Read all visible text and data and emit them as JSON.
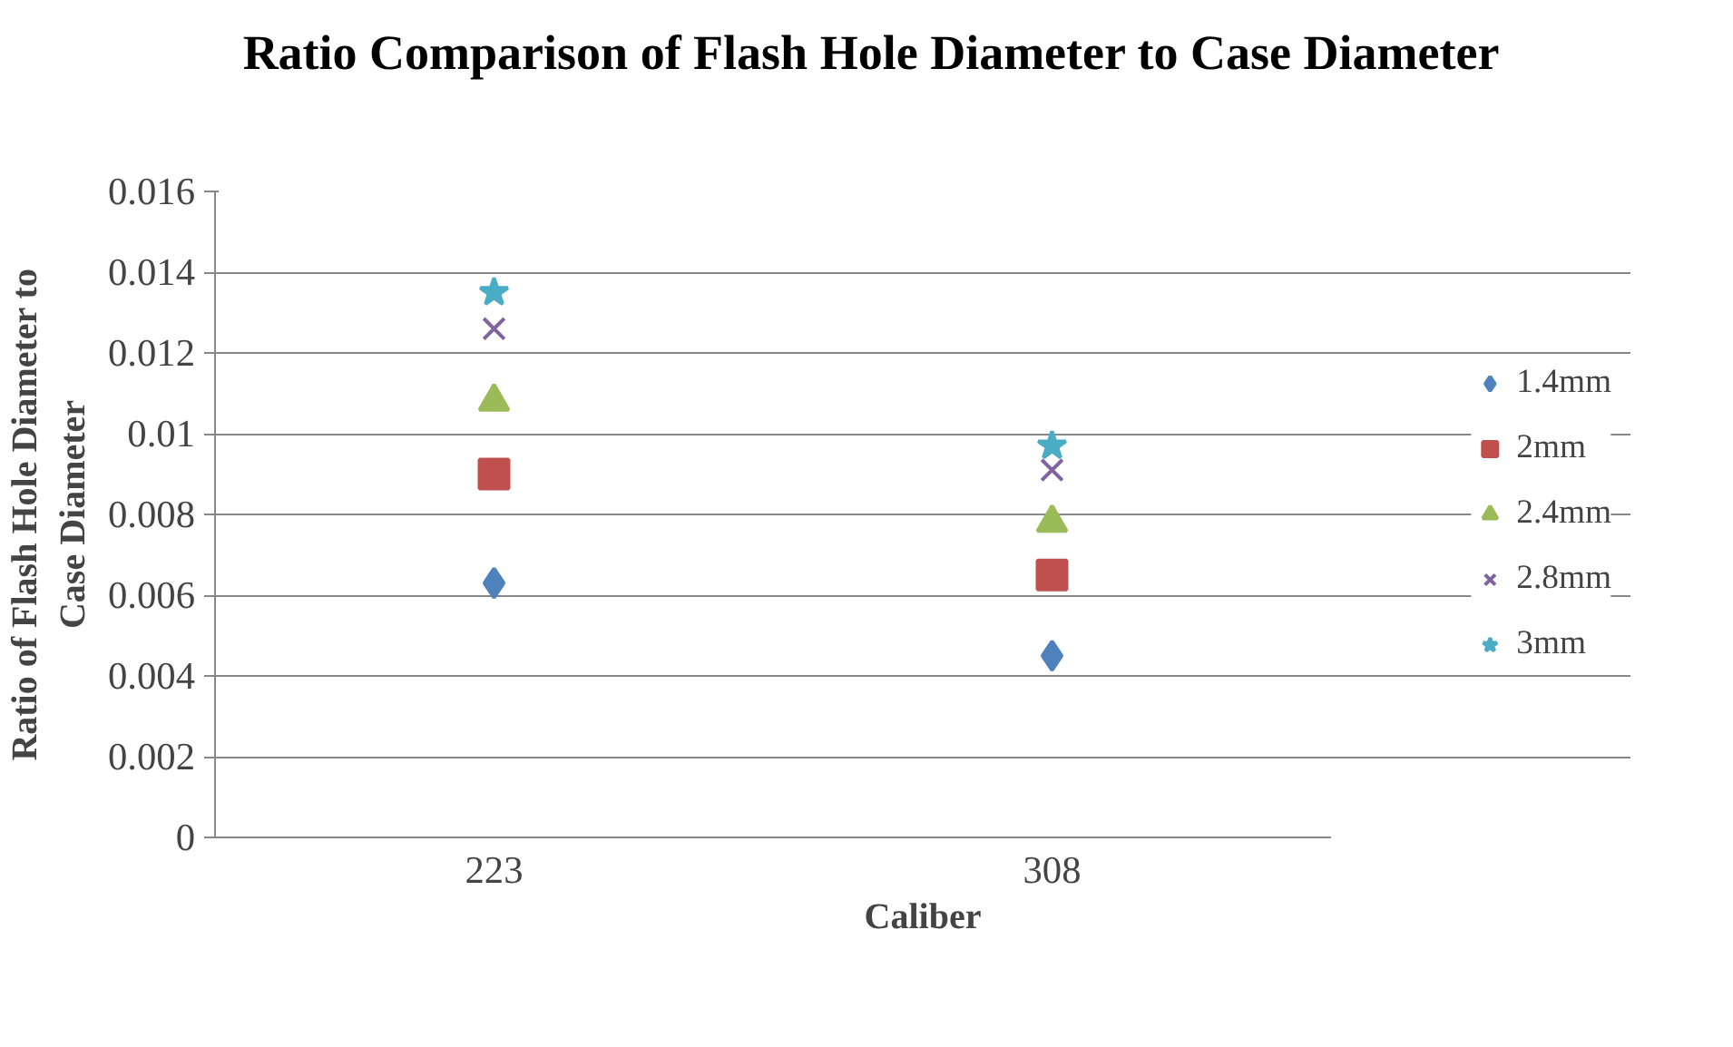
{
  "chart_data": {
    "type": "scatter",
    "title": "Ratio Comparison of Flash Hole Diameter to Case Diameter",
    "xlabel": "Caliber",
    "ylabel": "Ratio of Flash Hole Diameter to Case Diameter",
    "categories": [
      "223",
      "308"
    ],
    "ylim": [
      0,
      0.016
    ],
    "yticks": [
      0,
      0.002,
      0.004,
      0.006,
      0.008,
      0.01,
      0.012,
      0.014,
      0.016
    ],
    "grid": "y",
    "legend": "right",
    "series": [
      {
        "name": "1.4mm",
        "color": "#4f81bd",
        "marker": "diamond",
        "values": [
          0.0063,
          0.0045
        ]
      },
      {
        "name": "2mm",
        "color": "#c0504d",
        "marker": "square",
        "values": [
          0.009,
          0.0065
        ]
      },
      {
        "name": "2.4mm",
        "color": "#9bbb59",
        "marker": "triangle",
        "values": [
          0.0108,
          0.0078
        ]
      },
      {
        "name": "2.8mm",
        "color": "#8064a2",
        "marker": "cross",
        "values": [
          0.0126,
          0.0091
        ]
      },
      {
        "name": "3mm",
        "color": "#4bacc6",
        "marker": "star",
        "values": [
          0.0135,
          0.0097
        ]
      }
    ]
  }
}
